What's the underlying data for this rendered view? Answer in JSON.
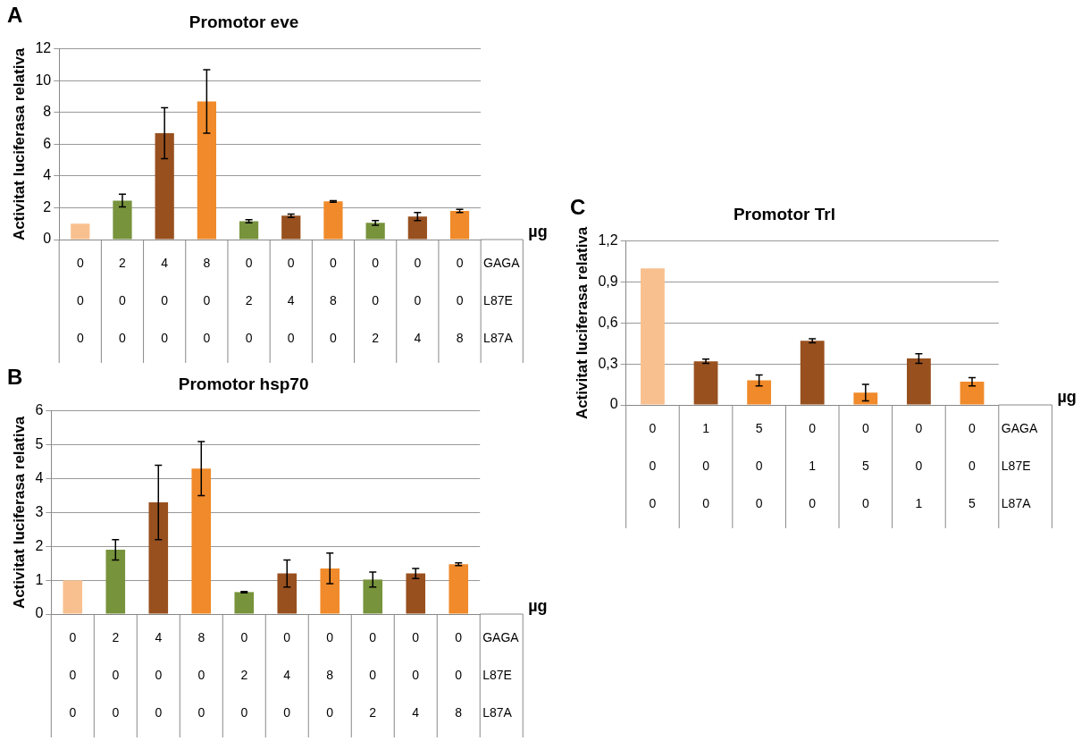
{
  "chart_data": [
    {
      "type": "bar",
      "title": "Promotor eve",
      "ylabel": "Activitat luciferasa relativa",
      "categories": [
        "0\n0\n0",
        "2\n0\n0",
        "4\n0\n0",
        "8\n0\n0",
        "0\n2\n0",
        "0\n4\n0",
        "0\n8\n0",
        "0\n0\n2",
        "0\n0\n4",
        "0\n0\n8"
      ],
      "values": [
        1,
        2.45,
        6.7,
        8.7,
        1.15,
        1.5,
        2.4,
        1.05,
        1.45,
        1.8
      ],
      "errors": [
        null,
        0.4,
        1.6,
        2.0,
        0.1,
        0.1,
        0.05,
        0.15,
        0.25,
        0.1
      ],
      "colors": [
        "#f9c08f",
        "#77933c",
        "#98501f",
        "#f08a2a",
        "#77933c",
        "#98501f",
        "#f08a2a",
        "#77933c",
        "#98501f",
        "#f08a2a"
      ],
      "ylim": [
        0,
        12
      ],
      "yticks": [
        0,
        2,
        4,
        6,
        8,
        10,
        12
      ],
      "grid": "y",
      "legend": false,
      "annotations": [
        "A",
        "µg",
        "GAGA",
        "L87E",
        "L87A"
      ]
    },
    {
      "type": "bar",
      "title": "Promotor hsp70",
      "ylabel": "Activitat luciferasa relativa",
      "categories": [
        "0\n0\n0",
        "2\n0\n0",
        "4\n0\n0",
        "8\n0\n0",
        "0\n2\n0",
        "0\n4\n0",
        "0\n8\n0",
        "0\n0\n2",
        "0\n0\n4",
        "0\n0\n8"
      ],
      "values": [
        1,
        1.9,
        3.3,
        4.3,
        0.65,
        1.2,
        1.35,
        1.02,
        1.2,
        1.47
      ],
      "errors": [
        null,
        0.3,
        1.1,
        0.8,
        0.02,
        0.4,
        0.45,
        0.22,
        0.15,
        0.04
      ],
      "colors": [
        "#f9c08f",
        "#77933c",
        "#98501f",
        "#f08a2a",
        "#77933c",
        "#98501f",
        "#f08a2a",
        "#77933c",
        "#98501f",
        "#f08a2a"
      ],
      "ylim": [
        0,
        6
      ],
      "yticks": [
        0,
        1,
        2,
        3,
        4,
        5,
        6
      ],
      "grid": "y",
      "legend": false,
      "annotations": [
        "B",
        "µg",
        "GAGA",
        "L87E",
        "L87A"
      ]
    },
    {
      "type": "bar",
      "title": "Promotor Trl",
      "ylabel": "Activitat luciferasa relativa",
      "categories": [
        "0\n0\n0",
        "1\n0\n0",
        "5\n0\n0",
        "0\n1\n0",
        "0\n5\n0",
        "0\n0\n1",
        "0\n0\n5"
      ],
      "values": [
        1,
        0.32,
        0.18,
        0.47,
        0.09,
        0.34,
        0.17
      ],
      "errors": [
        null,
        0.015,
        0.04,
        0.015,
        0.06,
        0.035,
        0.03
      ],
      "colors": [
        "#f9c08f",
        "#98501f",
        "#f08a2a",
        "#98501f",
        "#f08a2a",
        "#98501f",
        "#f08a2a"
      ],
      "ylim": [
        0,
        1.2
      ],
      "yticks": [
        0,
        {
          "value": 0.3,
          "label": "0,3"
        },
        {
          "value": 0.6,
          "label": "0,6"
        },
        {
          "value": 0.9,
          "label": "0,9"
        },
        {
          "value": 1.2,
          "label": "1,2"
        }
      ],
      "grid": "y",
      "legend": false,
      "annotations": [
        "C",
        "µg",
        "GAGA",
        "L87E",
        "L87A"
      ]
    }
  ]
}
